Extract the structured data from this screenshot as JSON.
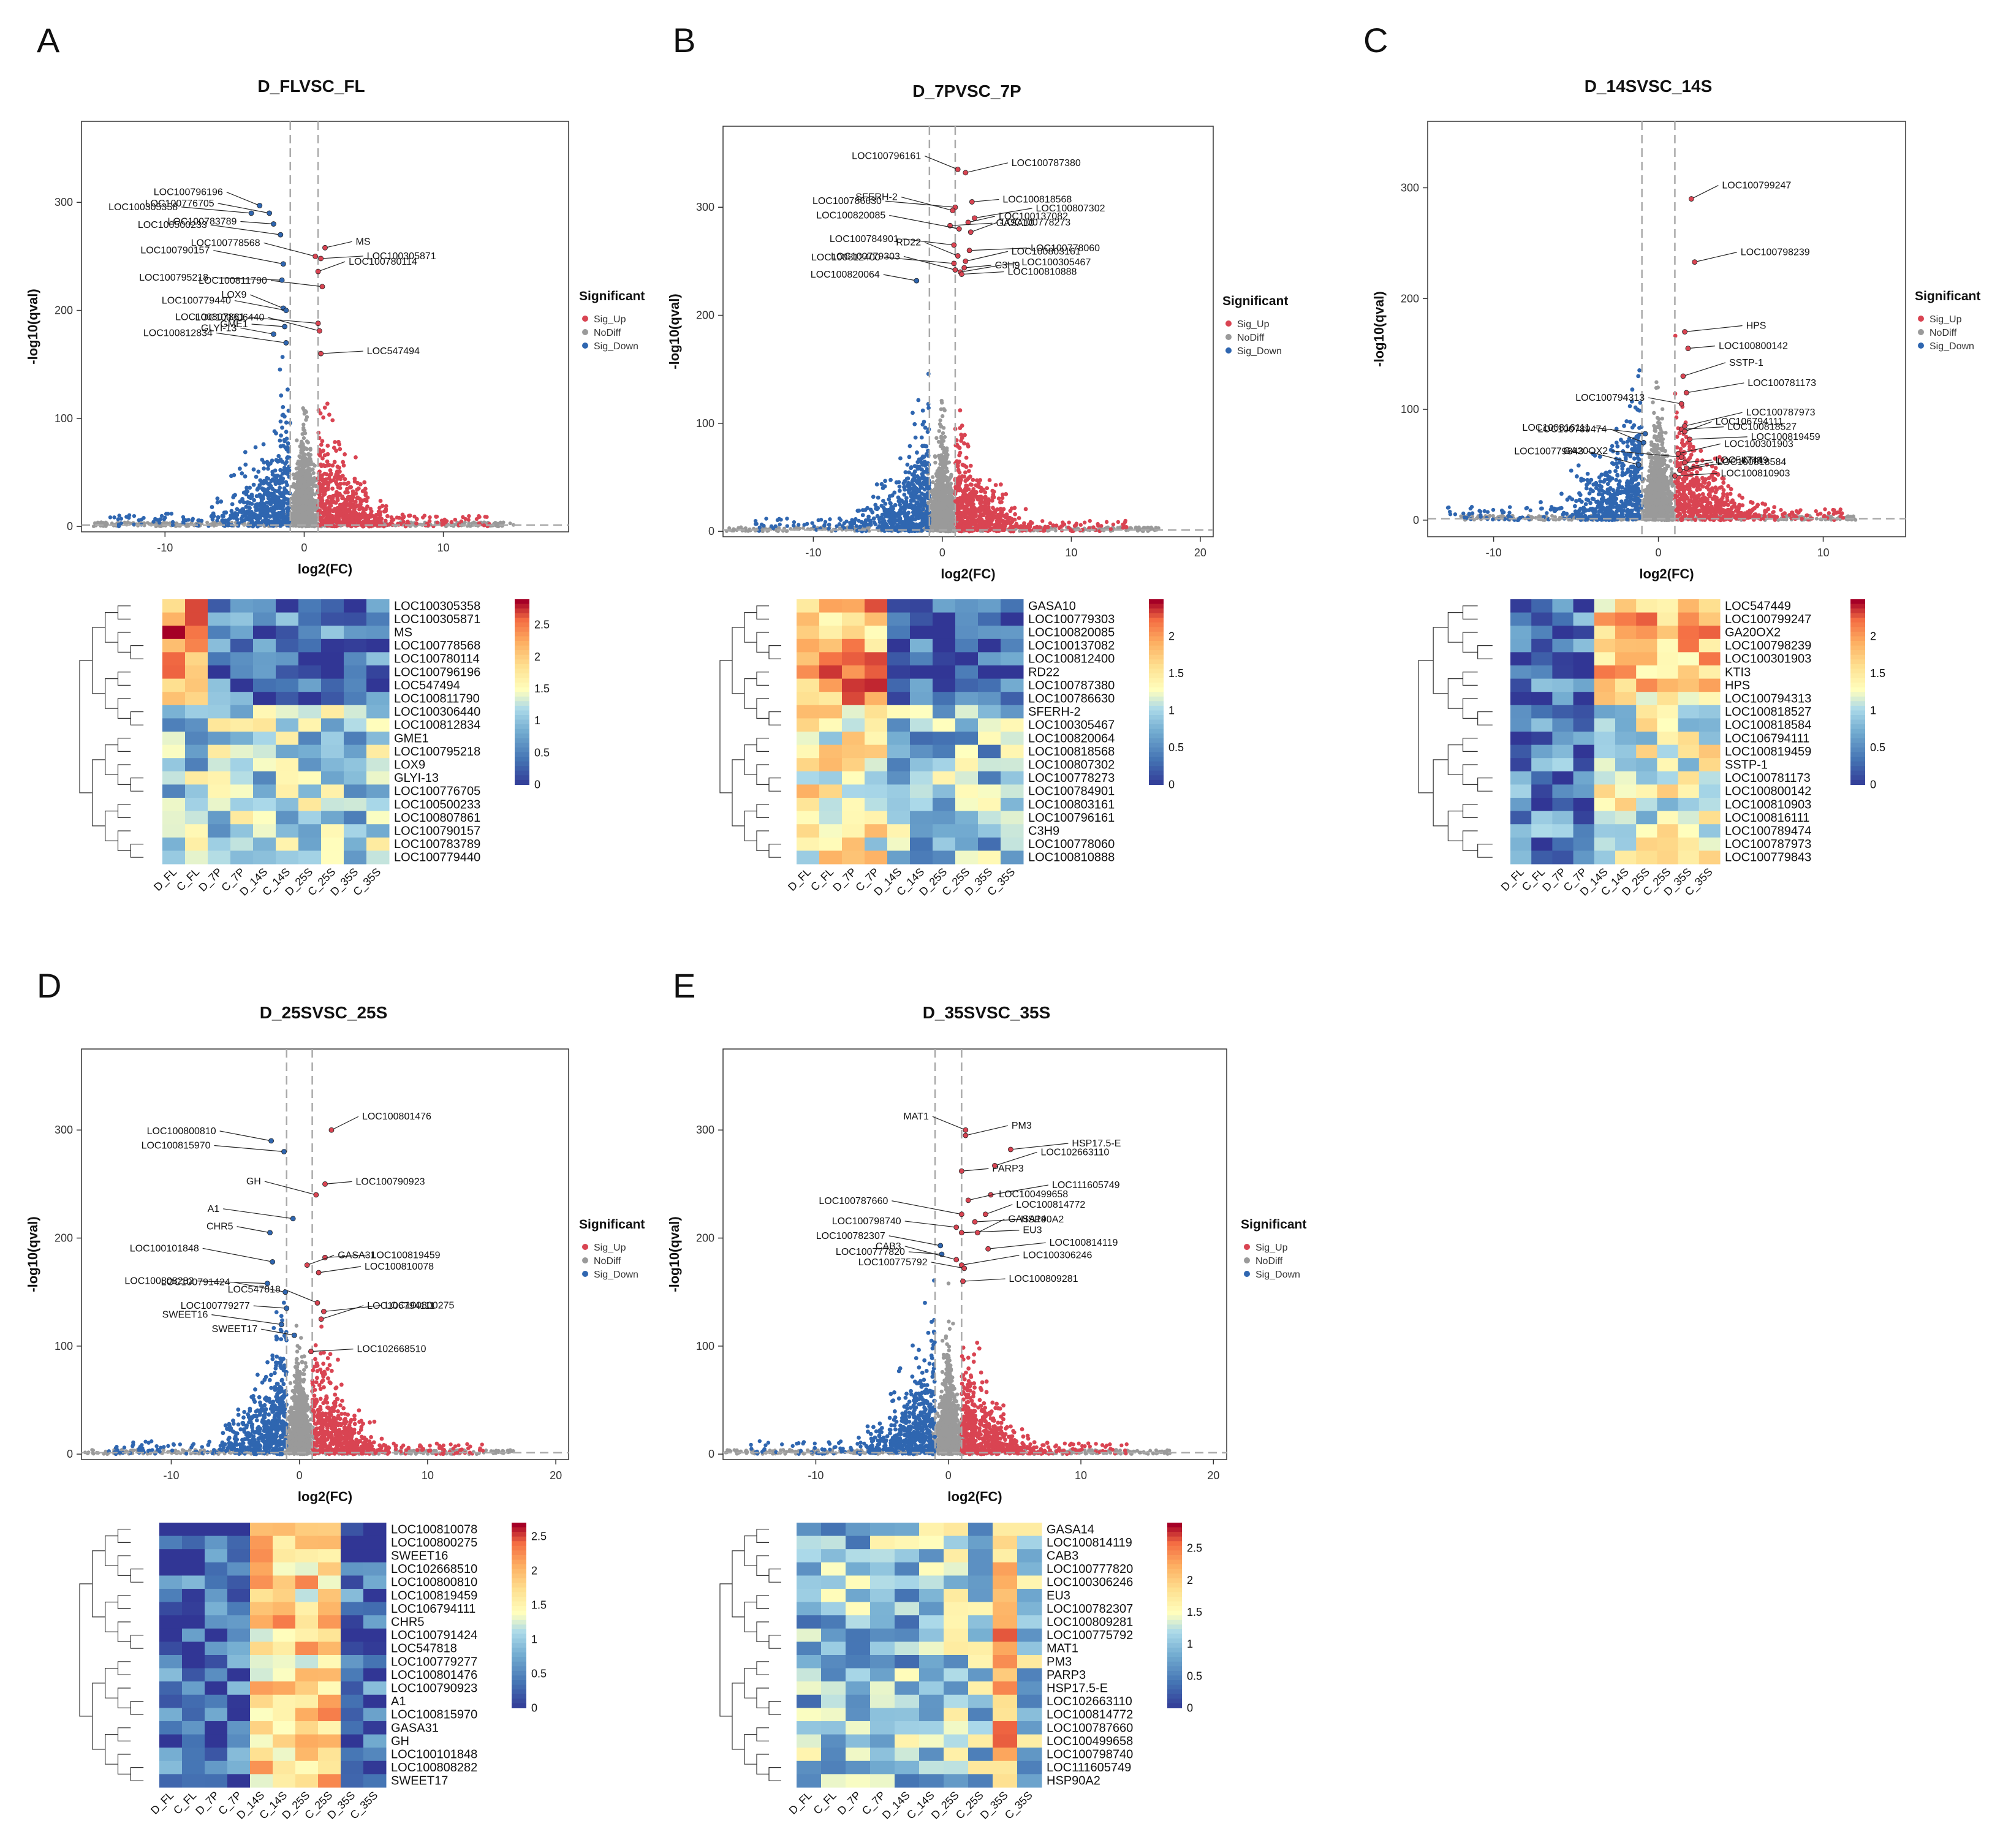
{
  "figure": {
    "colors": {
      "sig_up": "#d94452",
      "no_diff": "#9a9a9a",
      "sig_down": "#2f66b0",
      "heat_low": "#313695",
      "heat_mid": "#ffffbf",
      "heat_high": "#a50026"
    },
    "legend_title": "Significant",
    "legend_items": [
      "Sig_Up",
      "NoDiff",
      "Sig_Down"
    ],
    "heat_columns": [
      "D_FL",
      "C_FL",
      "D_7P",
      "C_7P",
      "D_14S",
      "C_14S",
      "D_25S",
      "C_25S",
      "D_35S",
      "C_35S"
    ]
  },
  "chart_data": [
    {
      "letter": "A",
      "type": "scatter",
      "title": "D_FLVSC_FL",
      "xlabel": "log2(FC)",
      "ylabel": "-log10(qval)",
      "xlim": [
        -16,
        19
      ],
      "ylim": [
        -5,
        375
      ],
      "xticks": [
        -10,
        0,
        10
      ],
      "yticks": [
        0,
        100,
        200,
        300
      ],
      "labels": [
        {
          "name": "LOC100796196",
          "x": -3.2,
          "y": 297
        },
        {
          "name": "LOC100776705",
          "x": -2.5,
          "y": 290
        },
        {
          "name": "LOC100305358",
          "x": -3.8,
          "y": 290
        },
        {
          "name": "LOC100783789",
          "x": -2.2,
          "y": 280
        },
        {
          "name": "LOC100778568",
          "x": 0.8,
          "y": 250
        },
        {
          "name": "LOC100500233",
          "x": -1.7,
          "y": 270
        },
        {
          "name": "MS",
          "x": 1.5,
          "y": 258
        },
        {
          "name": "LOC100305871",
          "x": 1.2,
          "y": 248
        },
        {
          "name": "LOC100790157",
          "x": -1.5,
          "y": 243
        },
        {
          "name": "LOC100780114",
          "x": 1.0,
          "y": 236
        },
        {
          "name": "LOC100811790",
          "x": 1.3,
          "y": 222
        },
        {
          "name": "LOC100795218",
          "x": -1.6,
          "y": 228
        },
        {
          "name": "LOX9",
          "x": -1.5,
          "y": 202
        },
        {
          "name": "LOC100779440",
          "x": -1.3,
          "y": 200
        },
        {
          "name": "LOC100807861",
          "x": 1.0,
          "y": 188
        },
        {
          "name": "GME1",
          "x": -1.4,
          "y": 185
        },
        {
          "name": "LOC100306440",
          "x": 1.1,
          "y": 181
        },
        {
          "name": "LOC100812834",
          "x": -1.3,
          "y": 170
        },
        {
          "name": "GLYI-13",
          "x": -2.2,
          "y": 178
        },
        {
          "name": "LOC547494",
          "x": 1.2,
          "y": 160
        }
      ],
      "heatmap_rows": [
        "LOC100305358",
        "LOC100305871",
        "MS",
        "LOC100778568",
        "LOC100780114",
        "LOC100796196",
        "LOC547494",
        "LOC100811790",
        "LOC100306440",
        "LOC100812834",
        "GME1",
        "LOC100795218",
        "LOX9",
        "GLYI-13",
        "LOC100776705",
        "LOC100500233",
        "LOC100807861",
        "LOC100790157",
        "LOC100783789",
        "LOC100779440"
      ],
      "heatmap_ticks": [
        2.5,
        2,
        1.5,
        1,
        0.5,
        0
      ],
      "heatmap_max": 2.9
    },
    {
      "letter": "B",
      "type": "scatter",
      "title": "D_7PVSC_7P",
      "xlabel": "log2(FC)",
      "ylabel": "-log10(qval)",
      "xlim": [
        -17,
        21
      ],
      "ylim": [
        -5,
        375
      ],
      "xticks": [
        -10,
        0,
        10,
        20
      ],
      "yticks": [
        0,
        100,
        200,
        300
      ],
      "labels": [
        {
          "name": "LOC100796161",
          "x": 1.2,
          "y": 335
        },
        {
          "name": "LOC100787380",
          "x": 1.8,
          "y": 332
        },
        {
          "name": "LOC100786630",
          "x": 1.0,
          "y": 300
        },
        {
          "name": "LOC100818568",
          "x": 2.3,
          "y": 305
        },
        {
          "name": "SFERH-2",
          "x": 0.8,
          "y": 297
        },
        {
          "name": "LOC100807302",
          "x": 2.5,
          "y": 290
        },
        {
          "name": "LOC100137082",
          "x": 2.0,
          "y": 286
        },
        {
          "name": "GASA10",
          "x": 0.6,
          "y": 283
        },
        {
          "name": "LOC100820085",
          "x": 1.3,
          "y": 280
        },
        {
          "name": "LOC100778273",
          "x": 2.2,
          "y": 277
        },
        {
          "name": "LOC100784901",
          "x": 0.9,
          "y": 265
        },
        {
          "name": "LOC100778060",
          "x": 2.1,
          "y": 260
        },
        {
          "name": "RD22",
          "x": 1.2,
          "y": 255
        },
        {
          "name": "LOC100803161",
          "x": 1.8,
          "y": 250
        },
        {
          "name": "LOC100812400",
          "x": 0.9,
          "y": 248
        },
        {
          "name": "C3H9",
          "x": 1.7,
          "y": 244
        },
        {
          "name": "LOC100779303",
          "x": 1.0,
          "y": 242
        },
        {
          "name": "LOC100305467",
          "x": 1.4,
          "y": 240
        },
        {
          "name": "LOC100820064",
          "x": -2.0,
          "y": 232
        },
        {
          "name": "LOC100810888",
          "x": 1.5,
          "y": 238
        }
      ],
      "heatmap_rows": [
        "GASA10",
        "LOC100779303",
        "LOC100820085",
        "LOC100137082",
        "LOC100812400",
        "RD22",
        "LOC100787380",
        "LOC100786630",
        "SFERH-2",
        "LOC100305467",
        "LOC100820064",
        "LOC100818568",
        "LOC100807302",
        "LOC100778273",
        "LOC100784901",
        "LOC100803161",
        "LOC100796161",
        "C3H9",
        "LOC100778060",
        "LOC100810888"
      ],
      "heatmap_ticks": [
        2,
        1.5,
        1,
        0.5,
        0
      ],
      "heatmap_max": 2.5
    },
    {
      "letter": "C",
      "type": "scatter",
      "title": "D_14SVSC_14S",
      "xlabel": "log2(FC)",
      "ylabel": "-log10(qval)",
      "xlim": [
        -14,
        15
      ],
      "ylim": [
        -15,
        360
      ],
      "xticks": [
        -10,
        0,
        10
      ],
      "yticks": [
        0,
        100,
        200,
        300
      ],
      "labels": [
        {
          "name": "LOC100799247",
          "x": 2.0,
          "y": 290
        },
        {
          "name": "LOC100798239",
          "x": 2.2,
          "y": 233
        },
        {
          "name": "HPS",
          "x": 1.6,
          "y": 170
        },
        {
          "name": "LOC100800142",
          "x": 1.8,
          "y": 155
        },
        {
          "name": "SSTP-1",
          "x": 1.5,
          "y": 130
        },
        {
          "name": "LOC100781173",
          "x": 1.7,
          "y": 115
        },
        {
          "name": "LOC100794313",
          "x": 1.4,
          "y": 105
        },
        {
          "name": "LOC100818527",
          "x": 1.4,
          "y": 82
        },
        {
          "name": "LOC100787973",
          "x": 1.6,
          "y": 85
        },
        {
          "name": "LOC106794111",
          "x": 1.6,
          "y": 80
        },
        {
          "name": "LOC100816111",
          "x": -0.8,
          "y": 78
        },
        {
          "name": "LOC100819459",
          "x": 1.9,
          "y": 73
        },
        {
          "name": "LOC100789474",
          "x": -0.9,
          "y": 70
        },
        {
          "name": "LOC100301903",
          "x": 1.2,
          "y": 60
        },
        {
          "name": "GA20OX2",
          "x": 1.4,
          "y": 57
        },
        {
          "name": "LOC547449",
          "x": 1.6,
          "y": 52
        },
        {
          "name": "LOC100779843",
          "x": -1.2,
          "y": 50
        },
        {
          "name": "KTI3",
          "x": 1.3,
          "y": 45
        },
        {
          "name": "LOC100818584",
          "x": 1.7,
          "y": 47
        },
        {
          "name": "LOC100810903",
          "x": 1.0,
          "y": 40
        }
      ],
      "heatmap_rows": [
        "LOC547449",
        "LOC100799247",
        "GA20OX2",
        "LOC100798239",
        "LOC100301903",
        "KTI3",
        "HPS",
        "LOC100794313",
        "LOC100818527",
        "LOC100818584",
        "LOC106794111",
        "LOC100819459",
        "SSTP-1",
        "LOC100781173",
        "LOC100800142",
        "LOC100810903",
        "LOC100816111",
        "LOC100789474",
        "LOC100787973",
        "LOC100779843"
      ],
      "heatmap_ticks": [
        2,
        1.5,
        1,
        0.5,
        0
      ],
      "heatmap_max": 2.5
    },
    {
      "letter": "D",
      "type": "scatter",
      "title": "D_25SVSC_25S",
      "xlabel": "log2(FC)",
      "ylabel": "-log10(qval)",
      "xlim": [
        -17,
        21
      ],
      "ylim": [
        -5,
        375
      ],
      "xticks": [
        -10,
        0,
        10,
        20
      ],
      "yticks": [
        0,
        100,
        200,
        300
      ],
      "labels": [
        {
          "name": "LOC100801476",
          "x": 2.5,
          "y": 300
        },
        {
          "name": "LOC100800810",
          "x": -2.2,
          "y": 290
        },
        {
          "name": "LOC100815970",
          "x": -1.2,
          "y": 280
        },
        {
          "name": "LOC100790923",
          "x": 2.0,
          "y": 250
        },
        {
          "name": "GH",
          "x": 1.3,
          "y": 240
        },
        {
          "name": "A1",
          "x": -0.5,
          "y": 218
        },
        {
          "name": "CHR5",
          "x": -2.3,
          "y": 205
        },
        {
          "name": "LOC100819459",
          "x": 2.0,
          "y": 182
        },
        {
          "name": "LOC100101848",
          "x": -2.1,
          "y": 178
        },
        {
          "name": "GASA31",
          "x": 0.6,
          "y": 175
        },
        {
          "name": "LOC100810078",
          "x": 1.5,
          "y": 168
        },
        {
          "name": "LOC100808282",
          "x": -2.5,
          "y": 158
        },
        {
          "name": "LOC547818",
          "x": 1.4,
          "y": 140
        },
        {
          "name": "LOC100791424",
          "x": -1.1,
          "y": 150
        },
        {
          "name": "LOC100800275",
          "x": 1.9,
          "y": 132
        },
        {
          "name": "LOC100779277",
          "x": -1.0,
          "y": 135
        },
        {
          "name": "LOC106794111",
          "x": 1.7,
          "y": 125
        },
        {
          "name": "SWEET16",
          "x": -1.4,
          "y": 120
        },
        {
          "name": "SWEET17",
          "x": -0.4,
          "y": 110
        },
        {
          "name": "LOC102668510",
          "x": 0.9,
          "y": 95
        }
      ],
      "heatmap_rows": [
        "LOC100810078",
        "LOC100800275",
        "SWEET16",
        "LOC102668510",
        "LOC100800810",
        "LOC100819459",
        "LOC106794111",
        "CHR5",
        "LOC100791424",
        "LOC547818",
        "LOC100779277",
        "LOC100801476",
        "LOC100790923",
        "A1",
        "LOC100815970",
        "GASA31",
        "GH",
        "LOC100101848",
        "LOC100808282",
        "SWEET17"
      ],
      "heatmap_ticks": [
        2.5,
        2,
        1.5,
        1,
        0.5,
        0
      ],
      "heatmap_max": 2.7
    },
    {
      "letter": "E",
      "type": "scatter",
      "title": "D_35SVSC_35S",
      "xlabel": "log2(FC)",
      "ylabel": "-log10(qval)",
      "xlim": [
        -17,
        21
      ],
      "ylim": [
        -5,
        375
      ],
      "xticks": [
        -10,
        0,
        10,
        20
      ],
      "yticks": [
        0,
        100,
        200,
        300
      ],
      "labels": [
        {
          "name": "MAT1",
          "x": 1.3,
          "y": 300
        },
        {
          "name": "PM3",
          "x": 1.3,
          "y": 295
        },
        {
          "name": "HSP17.5-E",
          "x": 4.7,
          "y": 282
        },
        {
          "name": "PARP3",
          "x": 1.0,
          "y": 262
        },
        {
          "name": "LOC102663110",
          "x": 3.5,
          "y": 267
        },
        {
          "name": "LOC111605749",
          "x": 3.2,
          "y": 240
        },
        {
          "name": "LOC100499658",
          "x": 1.5,
          "y": 235
        },
        {
          "name": "HSP90A2",
          "x": 2.0,
          "y": 215
        },
        {
          "name": "LOC100787660",
          "x": 1.0,
          "y": 222
        },
        {
          "name": "LOC100814772",
          "x": 2.8,
          "y": 222
        },
        {
          "name": "LOC100798740",
          "x": 0.6,
          "y": 210
        },
        {
          "name": "EU3",
          "x": 1.0,
          "y": 205
        },
        {
          "name": "GASA14",
          "x": 2.2,
          "y": 205
        },
        {
          "name": "LOC100782307",
          "x": -0.6,
          "y": 193
        },
        {
          "name": "LOC100814119",
          "x": 3.0,
          "y": 190
        },
        {
          "name": "LOC100777820",
          "x": -0.5,
          "y": 185
        },
        {
          "name": "CAB3",
          "x": 0.6,
          "y": 180
        },
        {
          "name": "LOC100306246",
          "x": 1.0,
          "y": 175
        },
        {
          "name": "LOC100775792",
          "x": 1.2,
          "y": 172
        },
        {
          "name": "LOC100809281",
          "x": 1.1,
          "y": 160
        }
      ],
      "heatmap_rows": [
        "GASA14",
        "LOC100814119",
        "CAB3",
        "LOC100777820",
        "LOC100306246",
        "EU3",
        "LOC100782307",
        "LOC100809281",
        "LOC100775792",
        "MAT1",
        "PM3",
        "PARP3",
        "HSP17.5-E",
        "LOC102663110",
        "LOC100814772",
        "LOC100787660",
        "LOC100499658",
        "LOC100798740",
        "LOC111605749",
        "HSP90A2"
      ],
      "heatmap_ticks": [
        2.5,
        2,
        1.5,
        1,
        0.5,
        0
      ],
      "heatmap_max": 2.9
    }
  ]
}
